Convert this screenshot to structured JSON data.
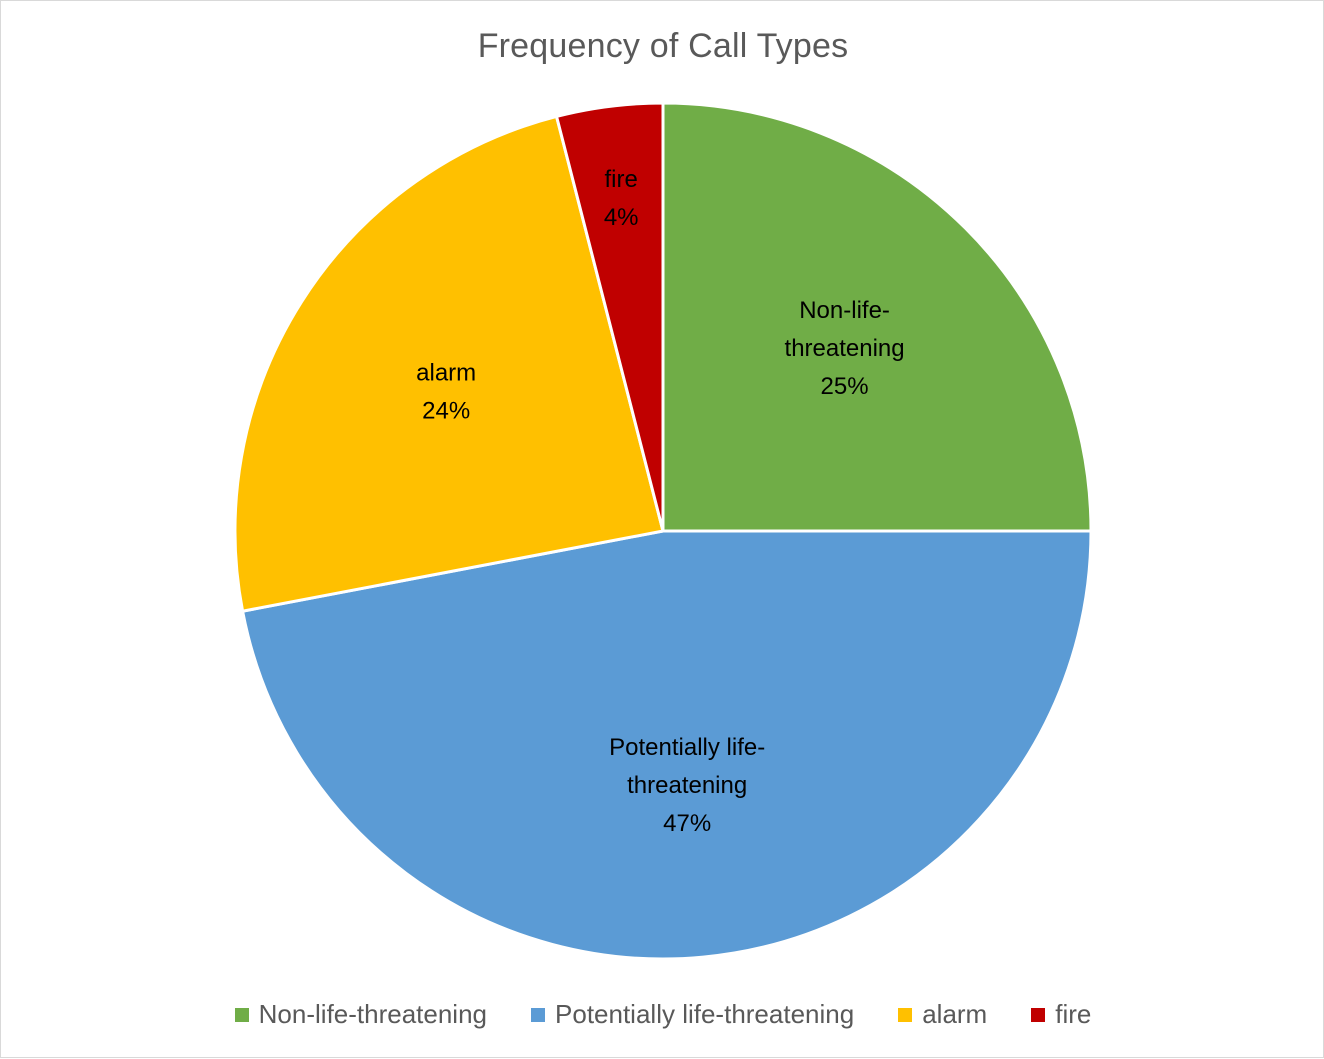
{
  "chart_data": {
    "type": "pie",
    "title": "Frequency of Call Types",
    "categories": [
      "Non-life-threatening",
      "Potentially life-threatening",
      "alarm",
      "fire"
    ],
    "values": [
      25,
      47,
      24,
      4
    ],
    "value_labels": [
      "25%",
      "47%",
      "24%",
      "4%"
    ],
    "label_lines": [
      [
        "Non-life-",
        "threatening"
      ],
      [
        "Potentially life-",
        "threatening"
      ],
      [
        "alarm"
      ],
      [
        "fire"
      ]
    ],
    "colors": [
      "#70AD47",
      "#5B9BD5",
      "#FFC000",
      "#C00000"
    ],
    "legend": {
      "position": "bottom",
      "entries": [
        "Non-life-threatening",
        "Potentially life-threatening",
        "alarm",
        "fire"
      ]
    }
  }
}
